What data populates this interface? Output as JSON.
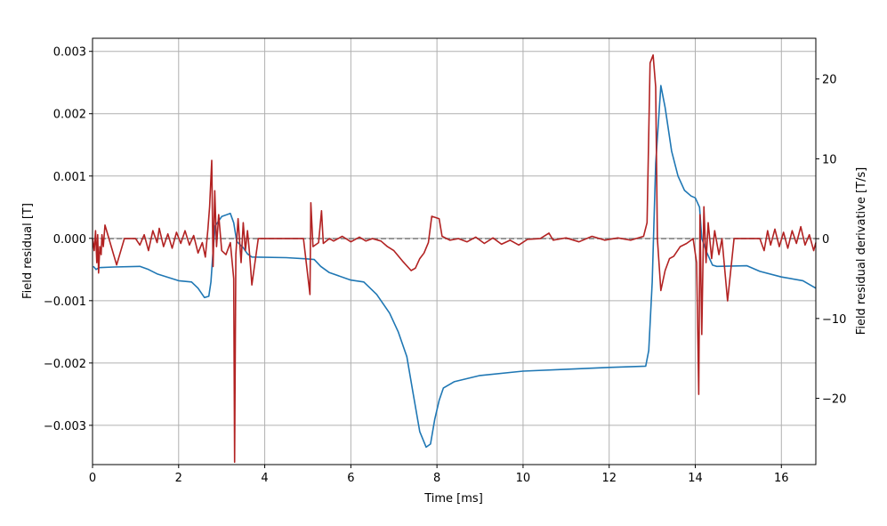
{
  "chart_data": {
    "type": "line",
    "title": "",
    "xlabel": "Time [ms]",
    "ylabel_left": "Field residual [T]",
    "ylabel_right": "Field residual derivative [T/s]",
    "xlim": [
      0,
      16.8
    ],
    "ylim_left": [
      -0.00363,
      0.00321
    ],
    "ylim_right": [
      -28.3,
      25.1
    ],
    "grid": true,
    "x_ticks": [
      0,
      2,
      4,
      6,
      8,
      10,
      12,
      14,
      16
    ],
    "x_tick_labels": [
      "0",
      "2",
      "4",
      "6",
      "8",
      "10",
      "12",
      "14",
      "16"
    ],
    "y_left_ticks": [
      0.003,
      0.002,
      0.001,
      0.0,
      -0.001,
      -0.002,
      -0.003
    ],
    "y_left_tick_labels": [
      "0.003",
      "0.002",
      "0.001",
      "0.000",
      "−0.001",
      "−0.002",
      "−0.003"
    ],
    "y_right_ticks": [
      20,
      10,
      0,
      -10,
      -20
    ],
    "y_right_tick_labels": [
      "20",
      "10",
      "0",
      "−10",
      "−20"
    ],
    "zero_line": {
      "axis": "right",
      "value": 0,
      "style": "dashed",
      "color": "#808080"
    },
    "series": [
      {
        "name": "Field residual",
        "axis": "left",
        "color": "#1f77b4",
        "points": [
          [
            0.02,
            -0.00045
          ],
          [
            0.08,
            -0.0005
          ],
          [
            0.15,
            -0.00047
          ],
          [
            0.5,
            -0.00046
          ],
          [
            1.1,
            -0.00045
          ],
          [
            1.3,
            -0.0005
          ],
          [
            1.5,
            -0.00057
          ],
          [
            2.0,
            -0.00068
          ],
          [
            2.3,
            -0.0007
          ],
          [
            2.45,
            -0.0008
          ],
          [
            2.6,
            -0.00095
          ],
          [
            2.7,
            -0.00093
          ],
          [
            2.75,
            -0.0007
          ],
          [
            2.8,
            -0.0002
          ],
          [
            2.85,
            0.0002
          ],
          [
            3.0,
            0.00035
          ],
          [
            3.2,
            0.0004
          ],
          [
            3.28,
            0.00025
          ],
          [
            3.35,
            -5e-05
          ],
          [
            3.5,
            -0.00015
          ],
          [
            3.6,
            -0.00025
          ],
          [
            3.7,
            -0.0003
          ],
          [
            4.5,
            -0.00031
          ],
          [
            5.0,
            -0.00033
          ],
          [
            5.15,
            -0.00034
          ],
          [
            5.3,
            -0.00045
          ],
          [
            5.5,
            -0.00055
          ],
          [
            6.0,
            -0.00067
          ],
          [
            6.3,
            -0.0007
          ],
          [
            6.6,
            -0.0009
          ],
          [
            6.9,
            -0.0012
          ],
          [
            7.1,
            -0.0015
          ],
          [
            7.3,
            -0.0019
          ],
          [
            7.45,
            -0.0025
          ],
          [
            7.6,
            -0.0031
          ],
          [
            7.75,
            -0.00335
          ],
          [
            7.85,
            -0.0033
          ],
          [
            7.95,
            -0.0029
          ],
          [
            8.05,
            -0.0026
          ],
          [
            8.15,
            -0.0024
          ],
          [
            8.4,
            -0.0023
          ],
          [
            9.0,
            -0.0022
          ],
          [
            10.0,
            -0.00213
          ],
          [
            11.0,
            -0.0021
          ],
          [
            12.0,
            -0.00207
          ],
          [
            12.85,
            -0.00205
          ],
          [
            12.92,
            -0.0018
          ],
          [
            13.0,
            -0.0007
          ],
          [
            13.08,
            0.0012
          ],
          [
            13.2,
            0.00245
          ],
          [
            13.3,
            0.0021
          ],
          [
            13.45,
            0.0014
          ],
          [
            13.6,
            0.001
          ],
          [
            13.75,
            0.00077
          ],
          [
            13.9,
            0.00068
          ],
          [
            14.0,
            0.00065
          ],
          [
            14.1,
            0.0005
          ],
          [
            14.15,
            0.0
          ],
          [
            14.25,
            -0.0002
          ],
          [
            14.4,
            -0.00043
          ],
          [
            14.5,
            -0.00045
          ],
          [
            15.2,
            -0.00044
          ],
          [
            15.5,
            -0.00053
          ],
          [
            16.0,
            -0.00062
          ],
          [
            16.5,
            -0.00068
          ],
          [
            16.8,
            -0.0008
          ]
        ]
      },
      {
        "name": "Field residual derivative",
        "axis": "right",
        "color": "#b22222",
        "points": [
          [
            0.0,
            0
          ],
          [
            0.04,
            -1.5
          ],
          [
            0.07,
            1
          ],
          [
            0.1,
            -3
          ],
          [
            0.12,
            0.5
          ],
          [
            0.14,
            -4.3
          ],
          [
            0.17,
            -1
          ],
          [
            0.2,
            -2
          ],
          [
            0.22,
            0.5
          ],
          [
            0.25,
            -1
          ],
          [
            0.29,
            1.7
          ],
          [
            0.56,
            -3.3
          ],
          [
            0.74,
            0
          ],
          [
            1.0,
            0
          ],
          [
            1.1,
            -0.8
          ],
          [
            1.2,
            0.5
          ],
          [
            1.3,
            -1.5
          ],
          [
            1.4,
            1
          ],
          [
            1.5,
            -0.5
          ],
          [
            1.55,
            1.3
          ],
          [
            1.65,
            -1
          ],
          [
            1.75,
            0.6
          ],
          [
            1.85,
            -1.2
          ],
          [
            1.95,
            0.8
          ],
          [
            2.05,
            -0.6
          ],
          [
            2.15,
            1
          ],
          [
            2.25,
            -0.8
          ],
          [
            2.35,
            0.4
          ],
          [
            2.45,
            -1.8
          ],
          [
            2.55,
            -0.5
          ],
          [
            2.62,
            -2.3
          ],
          [
            2.68,
            1.2
          ],
          [
            2.72,
            4
          ],
          [
            2.77,
            9.8
          ],
          [
            2.8,
            -3.5
          ],
          [
            2.84,
            6
          ],
          [
            2.88,
            -1
          ],
          [
            2.93,
            3
          ],
          [
            3.0,
            -1.5
          ],
          [
            3.1,
            -2
          ],
          [
            3.2,
            -0.5
          ],
          [
            3.28,
            -5
          ],
          [
            3.3,
            -28
          ],
          [
            3.33,
            -2
          ],
          [
            3.38,
            2.5
          ],
          [
            3.45,
            -3
          ],
          [
            3.5,
            2
          ],
          [
            3.55,
            -1.5
          ],
          [
            3.6,
            1
          ],
          [
            3.65,
            -2
          ],
          [
            3.7,
            -5.8
          ],
          [
            3.85,
            0
          ],
          [
            4.9,
            0
          ],
          [
            5.05,
            -7
          ],
          [
            5.07,
            4.5
          ],
          [
            5.12,
            -1
          ],
          [
            5.25,
            -0.5
          ],
          [
            5.32,
            3.5
          ],
          [
            5.36,
            -0.6
          ],
          [
            5.5,
            0
          ],
          [
            5.6,
            -0.3
          ],
          [
            5.8,
            0.3
          ],
          [
            6.0,
            -0.4
          ],
          [
            6.2,
            0.2
          ],
          [
            6.35,
            -0.3
          ],
          [
            6.5,
            0
          ],
          [
            6.7,
            -0.3
          ],
          [
            6.85,
            -1
          ],
          [
            7.0,
            -1.5
          ],
          [
            7.2,
            -2.8
          ],
          [
            7.4,
            -4
          ],
          [
            7.5,
            -3.7
          ],
          [
            7.6,
            -2.5
          ],
          [
            7.7,
            -1.8
          ],
          [
            7.8,
            -0.5
          ],
          [
            7.88,
            2.8
          ],
          [
            8.05,
            2.5
          ],
          [
            8.12,
            0.3
          ],
          [
            8.3,
            -0.2
          ],
          [
            8.5,
            0
          ],
          [
            8.7,
            -0.4
          ],
          [
            8.9,
            0.2
          ],
          [
            9.1,
            -0.6
          ],
          [
            9.3,
            0.1
          ],
          [
            9.5,
            -0.7
          ],
          [
            9.7,
            -0.2
          ],
          [
            9.9,
            -0.8
          ],
          [
            10.1,
            -0.1
          ],
          [
            10.4,
            0
          ],
          [
            10.6,
            0.7
          ],
          [
            10.7,
            -0.2
          ],
          [
            11.0,
            0.1
          ],
          [
            11.3,
            -0.4
          ],
          [
            11.6,
            0.3
          ],
          [
            11.9,
            -0.2
          ],
          [
            12.2,
            0.1
          ],
          [
            12.5,
            -0.2
          ],
          [
            12.8,
            0.3
          ],
          [
            12.88,
            2
          ],
          [
            12.95,
            22
          ],
          [
            13.02,
            23
          ],
          [
            13.08,
            19
          ],
          [
            13.12,
            0
          ],
          [
            13.2,
            -6.5
          ],
          [
            13.3,
            -4
          ],
          [
            13.4,
            -2.5
          ],
          [
            13.5,
            -2.2
          ],
          [
            13.65,
            -1
          ],
          [
            13.8,
            -0.6
          ],
          [
            13.95,
            0
          ],
          [
            14.03,
            -3
          ],
          [
            14.08,
            -19.5
          ],
          [
            14.11,
            3
          ],
          [
            14.15,
            -12
          ],
          [
            14.2,
            4
          ],
          [
            14.25,
            -3
          ],
          [
            14.3,
            2
          ],
          [
            14.38,
            -2.5
          ],
          [
            14.45,
            1
          ],
          [
            14.55,
            -2
          ],
          [
            14.62,
            0
          ],
          [
            14.75,
            -7.8
          ],
          [
            14.9,
            0
          ],
          [
            15.5,
            0
          ],
          [
            15.6,
            -1.5
          ],
          [
            15.68,
            1
          ],
          [
            15.75,
            -0.8
          ],
          [
            15.85,
            1.2
          ],
          [
            15.95,
            -1
          ],
          [
            16.05,
            0.8
          ],
          [
            16.15,
            -1.2
          ],
          [
            16.25,
            1
          ],
          [
            16.35,
            -0.6
          ],
          [
            16.45,
            1.5
          ],
          [
            16.55,
            -0.8
          ],
          [
            16.65,
            0.5
          ],
          [
            16.75,
            -1.5
          ],
          [
            16.8,
            -0.5
          ]
        ]
      }
    ]
  }
}
